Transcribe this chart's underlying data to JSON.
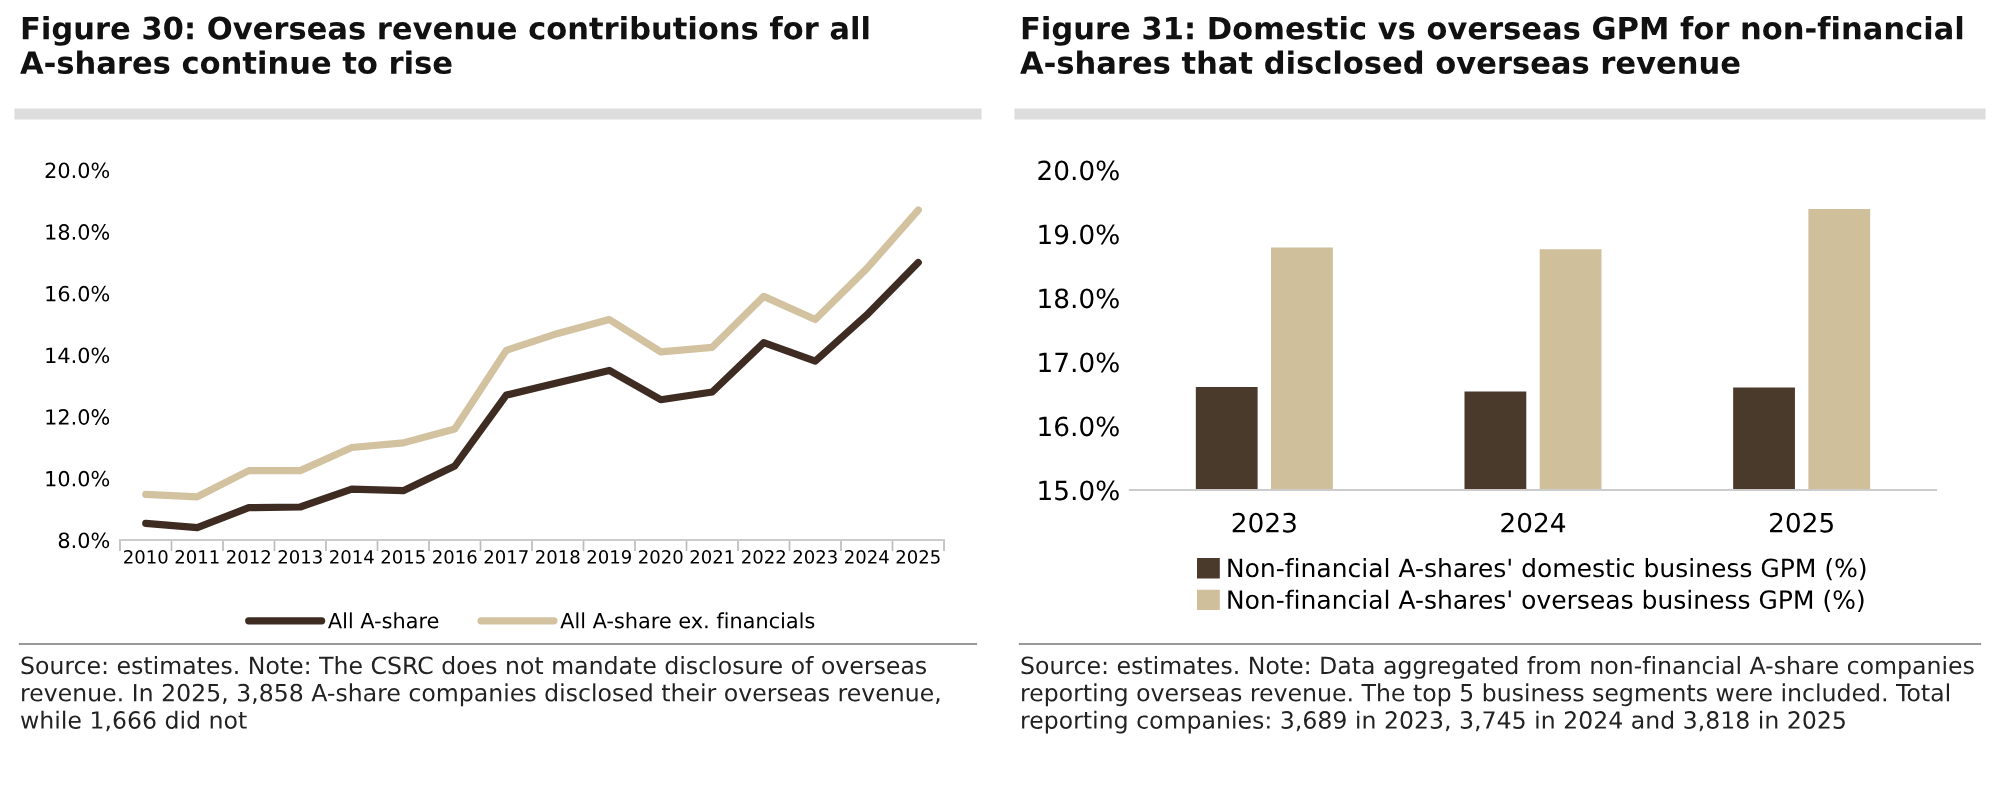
{
  "chart_data": [
    {
      "type": "line",
      "title": "Figure 30: Overseas revenue contributions for all A-shares continue to rise",
      "categories": [
        "2010",
        "2011",
        "2012",
        "2013",
        "2014",
        "2015",
        "2016",
        "2017",
        "2018",
        "2019",
        "2020",
        "2021",
        "2022",
        "2023",
        "2024",
        "2025"
      ],
      "series": [
        {
          "name": "All A-share",
          "color": "#3e2c23",
          "values": [
            8.54,
            8.4,
            9.05,
            9.07,
            9.65,
            9.6,
            10.4,
            12.7,
            13.1,
            13.5,
            12.55,
            12.8,
            14.4,
            13.8,
            15.3,
            17.0
          ]
        },
        {
          "name": "All A-share ex. financials",
          "color": "#d3c29f",
          "values": [
            9.48,
            9.4,
            10.25,
            10.25,
            11.0,
            11.15,
            11.6,
            14.15,
            14.7,
            15.15,
            14.1,
            14.25,
            15.9,
            15.15,
            16.8,
            18.7
          ]
        }
      ],
      "ylim": [
        8,
        20
      ],
      "yticks": [
        {
          "value": 8,
          "label": "8.0%"
        },
        {
          "value": 10,
          "label": "10.0%"
        },
        {
          "value": 12,
          "label": "12.0%"
        },
        {
          "value": 14,
          "label": "14.0%"
        },
        {
          "value": 16,
          "label": "16.0%"
        },
        {
          "value": 18,
          "label": "18.0%"
        },
        {
          "value": 20,
          "label": "20.0%"
        }
      ],
      "legend": "bottom",
      "grid": false,
      "marker": "none",
      "line_style": "solid",
      "annotations": [
        "Source: estimates. Note: The CSRC does not mandate disclosure of overseas revenue. In 2025, 3,858 A-share companies disclosed their overseas revenue, while 1,666 did not"
      ]
    },
    {
      "type": "bar",
      "title": "Figure 31: Domestic vs overseas GPM for non-financial A-shares that disclosed overseas revenue",
      "categories": [
        "2023",
        "2024",
        "2025"
      ],
      "series": [
        {
          "name": "Non-financial A-shares' domestic business GPM (%)",
          "color": "#4a3a2c",
          "values": [
            16.61,
            16.54,
            16.6
          ]
        },
        {
          "name": "Non-financial A-shares' overseas business GPM (%)",
          "color": "#cfbf9b",
          "values": [
            18.79,
            18.76,
            19.39
          ]
        }
      ],
      "ylim": [
        15,
        20
      ],
      "yticks": [
        {
          "value": 15,
          "label": "15.0%"
        },
        {
          "value": 16,
          "label": "16.0%"
        },
        {
          "value": 17,
          "label": "17.0%"
        },
        {
          "value": 18,
          "label": "18.0%"
        },
        {
          "value": 19,
          "label": "19.0%"
        },
        {
          "value": 20,
          "label": "20.0%"
        }
      ],
      "legend": "bottom",
      "grid": false,
      "annotations": [
        "Source: estimates. Note: Data aggregated from non-financial A-share companies reporting overseas revenue. The top 5 business segments were included. Total reporting companies: 3,689 in 2023, 3,745 in 2024 and 3,818 in 2025"
      ]
    }
  ]
}
